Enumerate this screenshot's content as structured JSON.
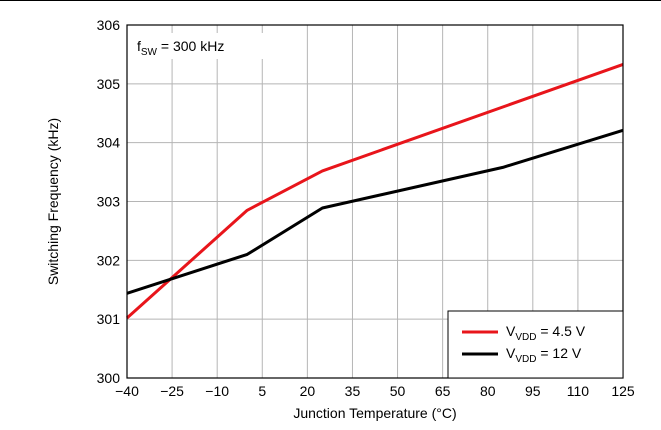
{
  "chart_data": {
    "type": "line",
    "title": "",
    "xlabel": "Junction Temperature (°C)",
    "ylabel": "Switching Frequency (kHz)",
    "xlim": [
      -40,
      125
    ],
    "ylim": [
      300,
      306
    ],
    "xticks": [
      -40,
      -25,
      -10,
      5,
      20,
      35,
      50,
      65,
      80,
      95,
      110,
      125
    ],
    "xtick_labels": [
      "−40",
      "−25",
      "−10",
      "5",
      "20",
      "35",
      "50",
      "65",
      "80",
      "95",
      "110",
      "125"
    ],
    "yticks": [
      300,
      301,
      302,
      303,
      304,
      305,
      306
    ],
    "grid": true,
    "legend_position": "bottom-right",
    "annotation": {
      "main": "f",
      "sub": "SW",
      "rest": " = 300 kHz"
    },
    "series": [
      {
        "name": "VVDD = 4.5 V",
        "label_main": "V",
        "label_sub": "VDD",
        "label_rest": " = 4.5 V",
        "color": "#e8151b",
        "x": [
          -40,
          0,
          25,
          125
        ],
        "y": [
          301.02,
          302.85,
          303.52,
          305.33
        ]
      },
      {
        "name": "VVDD = 12 V",
        "label_main": "V",
        "label_sub": "VDD",
        "label_rest": " = 12 V",
        "color": "#000000",
        "x": [
          -40,
          0,
          25,
          85,
          125
        ],
        "y": [
          301.44,
          302.1,
          302.89,
          303.58,
          304.21
        ]
      }
    ]
  }
}
